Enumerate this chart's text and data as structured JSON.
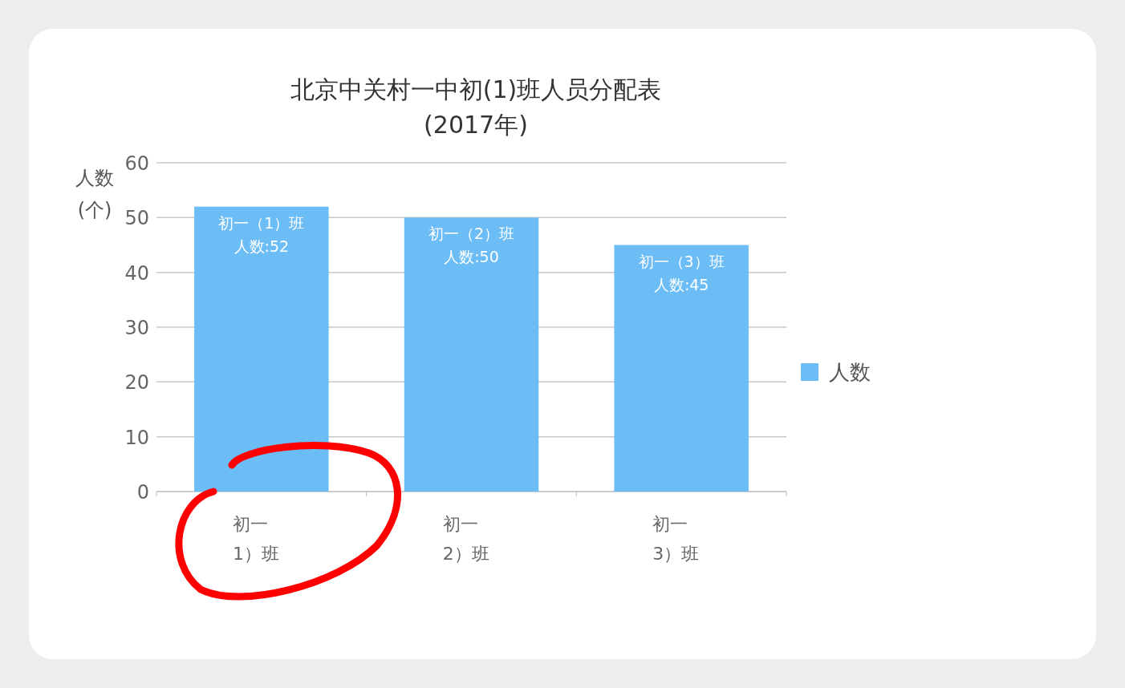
{
  "chart_data": {
    "type": "bar",
    "title": "北京中关村一中初(1)班人员分配表\n(2017年)",
    "ylabel": "人数\n(个)",
    "categories": [
      "初一\n1）班",
      "初一\n2）班",
      "初一\n3）班"
    ],
    "series": [
      {
        "name": "人数",
        "color": "#6cbcf5",
        "values": [
          52,
          50,
          45
        ],
        "value_labels": [
          "初一（1）班人数:52",
          "初一（2）班人数:50",
          "初一（3）班人数:45"
        ]
      }
    ],
    "ylim": [
      0,
      60
    ],
    "yticks": [
      0,
      10,
      20,
      30,
      40,
      50,
      60
    ],
    "grid": "y",
    "legend": "right"
  }
}
